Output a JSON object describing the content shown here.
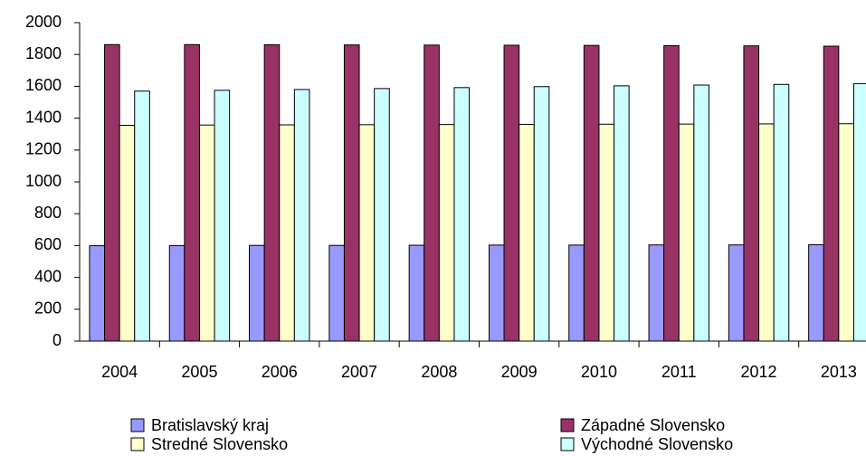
{
  "chart_data": {
    "type": "bar",
    "categories": [
      "2004",
      "2005",
      "2006",
      "2007",
      "2008",
      "2009",
      "2010",
      "2011",
      "2012",
      "2013"
    ],
    "series": [
      {
        "name": "Bratislavský kraj",
        "color": "#9999ff",
        "values": [
          599,
          600,
          601,
          601,
          602,
          603,
          603,
          604,
          604,
          605
        ]
      },
      {
        "name": "Západné Slovensko",
        "color": "#993366",
        "values": [
          1862,
          1862,
          1861,
          1860,
          1859,
          1858,
          1857,
          1855,
          1854,
          1852
        ]
      },
      {
        "name": "Stredné Slovensko",
        "color": "#ffffcc",
        "values": [
          1355,
          1357,
          1358,
          1359,
          1360,
          1361,
          1362,
          1363,
          1364,
          1365
        ]
      },
      {
        "name": "Východné Slovensko",
        "color": "#ccffff",
        "values": [
          1570,
          1575,
          1580,
          1586,
          1592,
          1598,
          1603,
          1608,
          1612,
          1617
        ]
      }
    ],
    "ylim": [
      0,
      2000
    ],
    "yticks": [
      0,
      200,
      400,
      600,
      800,
      1000,
      1200,
      1400,
      1600,
      1800,
      2000
    ],
    "grid": false,
    "legend": "bottom"
  }
}
